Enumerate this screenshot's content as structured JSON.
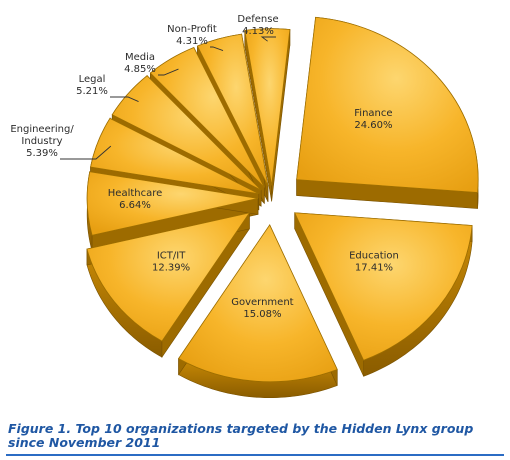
{
  "chart_data": {
    "type": "pie",
    "title": "",
    "categories": [
      "Finance",
      "Education",
      "Government",
      "ICT/IT",
      "Healthcare",
      "Engineering/ Industry",
      "Legal",
      "Media",
      "Non-Profit",
      "Defense"
    ],
    "labels": [
      [
        "Finance"
      ],
      [
        "Education"
      ],
      [
        "Government"
      ],
      [
        "ICT/IT"
      ],
      [
        "Healthcare"
      ],
      [
        "Engineering/",
        "Industry"
      ],
      [
        "Legal"
      ],
      [
        "Media"
      ],
      [
        "Non-Profit"
      ],
      [
        "Defense"
      ]
    ],
    "values": [
      24.6,
      17.41,
      15.08,
      12.39,
      6.64,
      5.39,
      5.21,
      4.85,
      4.31,
      4.13
    ],
    "value_labels": [
      "24.60%",
      "17.41%",
      "15.08%",
      "12.39%",
      "6.64%",
      "5.39%",
      "5.21%",
      "4.85%",
      "4.31%",
      "4.13%"
    ],
    "style": "3d exploded pie",
    "colors": {
      "top": "#f7b52a",
      "top_light": "#fdd36a",
      "side": "#b27a00"
    }
  },
  "caption": "Figure 1. Top 10 organizations targeted by the Hidden Lynx group since November 2011"
}
